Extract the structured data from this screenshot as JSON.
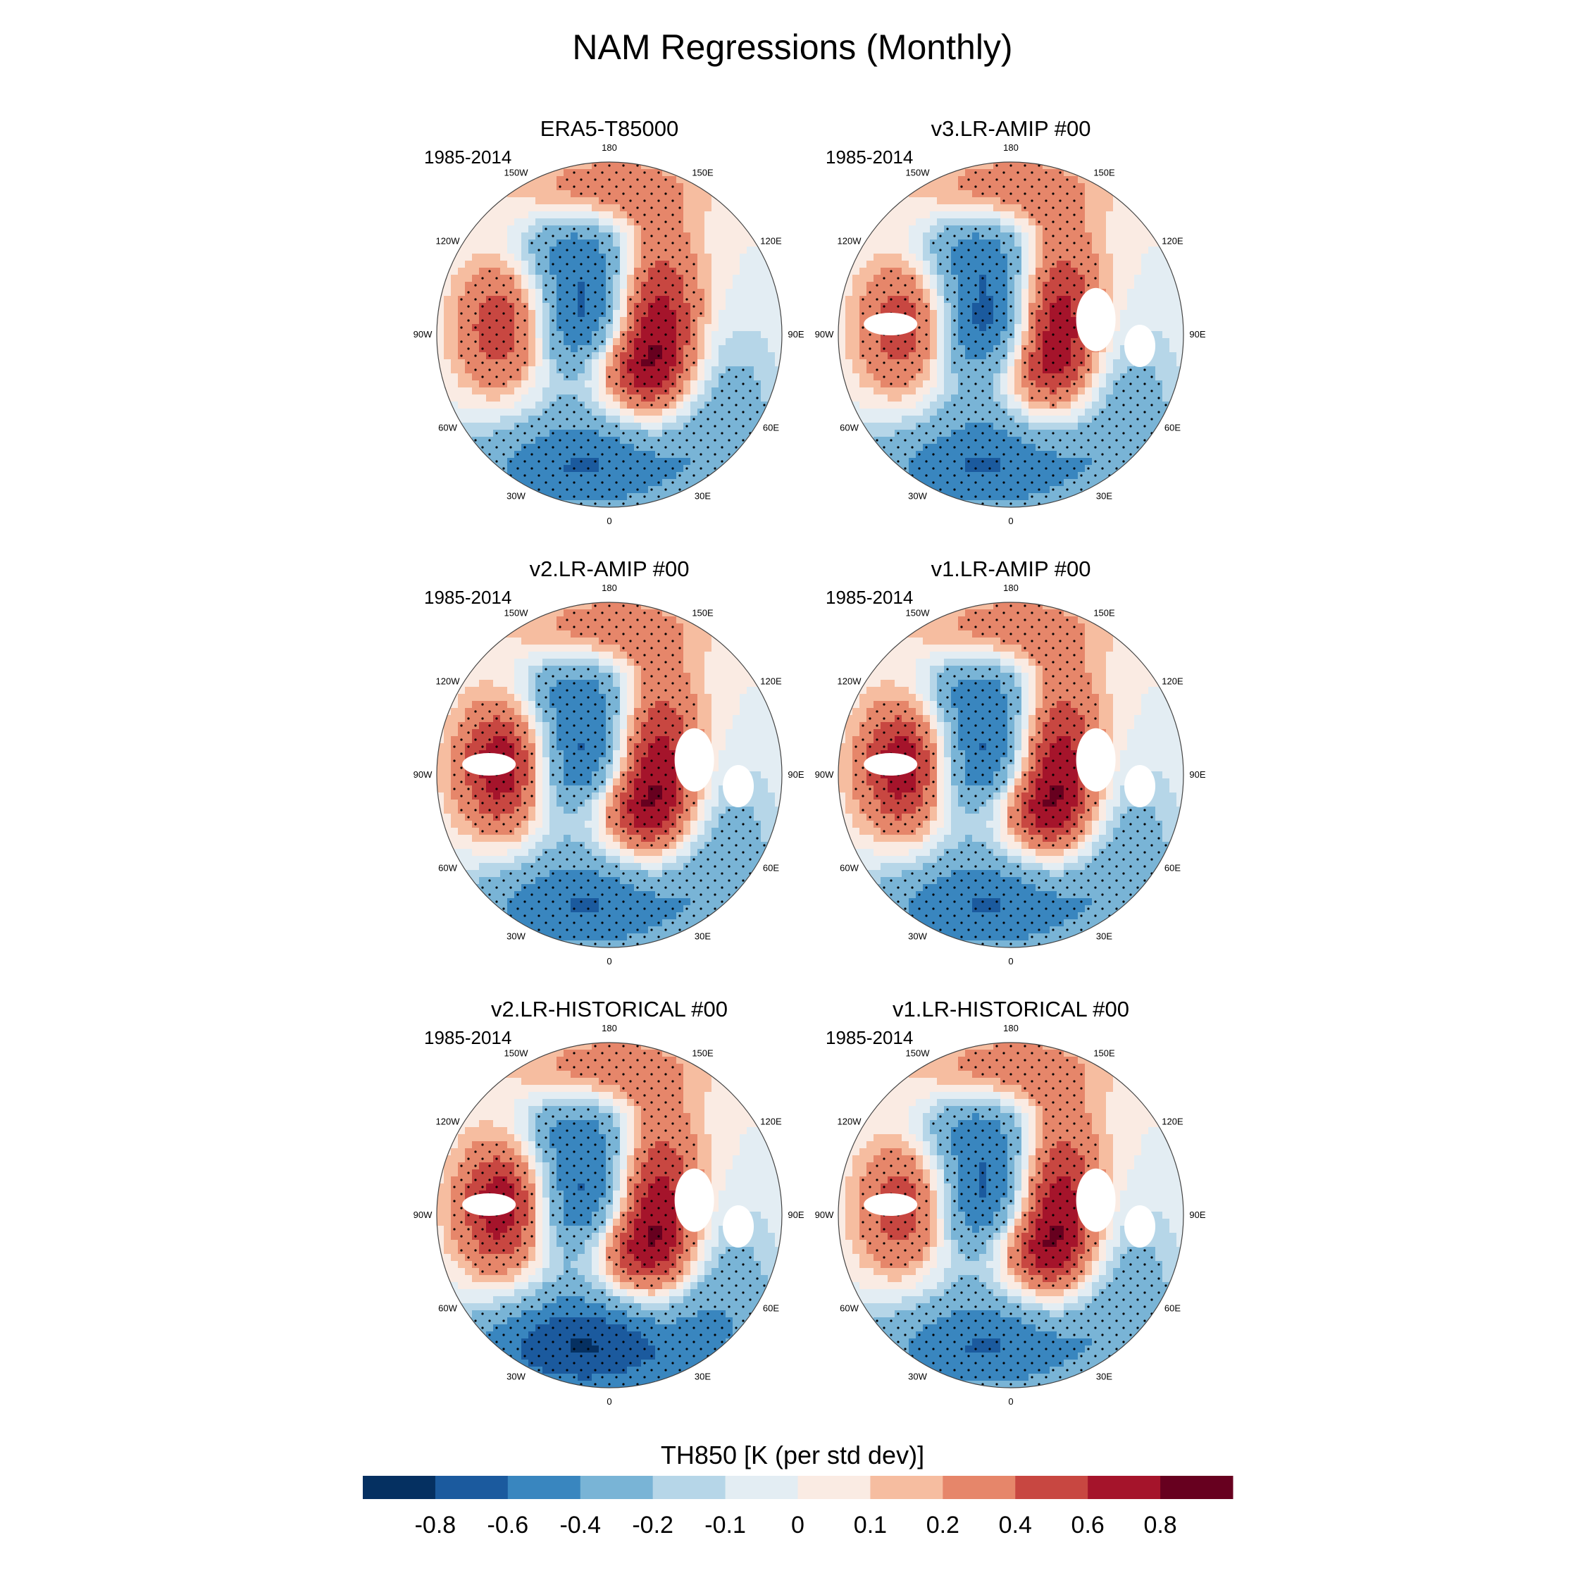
{
  "figure": {
    "title": "NAM Regressions (Monthly)",
    "period": "1985-2014"
  },
  "longitude_labels": [
    "180",
    "150E",
    "120E",
    "90E",
    "60E",
    "30E",
    "0",
    "30W",
    "60W",
    "90W",
    "120W",
    "150W"
  ],
  "chart_data": {
    "type": "heatmap",
    "projection": "north polar stereographic",
    "variable": "TH850",
    "units": "K (per std dev)",
    "colorbar": {
      "title": "TH850 [K (per std dev)]",
      "levels": [
        -0.8,
        -0.6,
        -0.4,
        -0.2,
        -0.1,
        0,
        0.1,
        0.2,
        0.4,
        0.6,
        0.8
      ],
      "tick_labels": [
        "-0.8",
        "-0.6",
        "-0.4",
        "-0.2",
        "-0.1",
        "0",
        "0.1",
        "0.2",
        "0.4",
        "0.6",
        "0.8"
      ],
      "colors": [
        "#053061",
        "#1b5a9e",
        "#3986bf",
        "#79b4d6",
        "#b6d6e8",
        "#e3edf3",
        "#faebe3",
        "#f6bda0",
        "#e6866a",
        "#c84741",
        "#a5142b",
        "#67001f"
      ]
    },
    "panels": [
      {
        "title": "ERA5-T85000",
        "period": "1985-2014",
        "pattern": {
          "centre_min": -0.8,
          "centre_lon": 270,
          "pacific_max": 0.8,
          "pacific_lon": 110,
          "europe_max": 0.6,
          "europe_lon": 20,
          "atlantic_min": -0.6,
          "atlantic_lon": 350,
          "canada_max": 0.6,
          "canada_lon": 265
        }
      },
      {
        "title": "v3.LR-AMIP  #00",
        "period": "1985-2014",
        "pattern": {
          "centre_min": -0.8,
          "centre_lon": 270,
          "pacific_max": 0.8,
          "pacific_lon": 110,
          "europe_max": 0.4,
          "europe_lon": 20,
          "atlantic_min": -0.6,
          "atlantic_lon": 350,
          "canada_max": 0.6,
          "canada_lon": 265
        }
      },
      {
        "title": "v2.LR-AMIP  #00",
        "period": "1985-2014",
        "pattern": {
          "centre_min": -0.8,
          "centre_lon": 270,
          "pacific_max": 0.8,
          "pacific_lon": 110,
          "europe_max": 0.6,
          "europe_lon": 20,
          "atlantic_min": -0.6,
          "atlantic_lon": 350,
          "canada_max": 0.8,
          "canada_lon": 265
        }
      },
      {
        "title": "v1.LR-AMIP  #00",
        "period": "1985-2014",
        "pattern": {
          "centre_min": -0.8,
          "centre_lon": 270,
          "pacific_max": 0.8,
          "pacific_lon": 110,
          "europe_max": 0.6,
          "europe_lon": 20,
          "atlantic_min": -0.6,
          "atlantic_lon": 350,
          "canada_max": 0.8,
          "canada_lon": 265
        }
      },
      {
        "title": "v2.LR-HISTORICAL  #00",
        "period": "1985-2014",
        "pattern": {
          "centre_min": -0.8,
          "centre_lon": 270,
          "pacific_max": 0.8,
          "pacific_lon": 110,
          "europe_max": 0.6,
          "europe_lon": 20,
          "atlantic_min": -0.8,
          "atlantic_lon": 350,
          "canada_max": 0.8,
          "canada_lon": 265
        }
      },
      {
        "title": "v1.LR-HISTORICAL  #00",
        "period": "1985-2014",
        "pattern": {
          "centre_min": -0.8,
          "centre_lon": 270,
          "pacific_max": 0.8,
          "pacific_lon": 110,
          "europe_max": 0.6,
          "europe_lon": 20,
          "atlantic_min": -0.6,
          "atlantic_lon": 350,
          "canada_max": 0.6,
          "canada_lon": 265
        }
      }
    ]
  }
}
